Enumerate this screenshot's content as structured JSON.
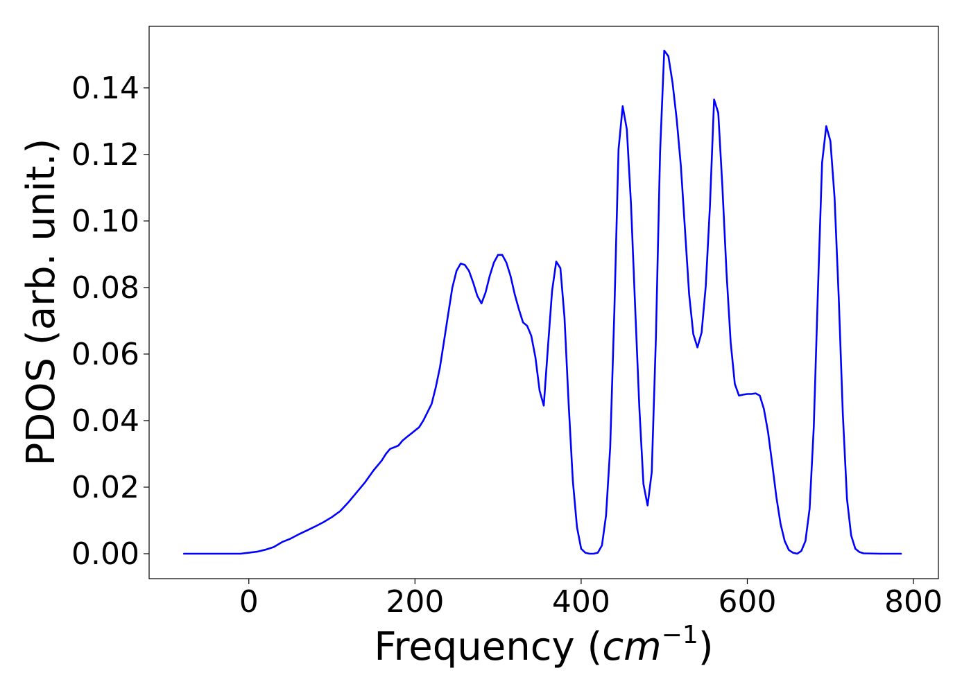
{
  "chart_data": {
    "type": "line",
    "title": "",
    "xlabel": {
      "prefix": "Frequency (",
      "math_base": "cm",
      "math_sup": "−1",
      "suffix": ")"
    },
    "ylabel": "PDOS (arb. unit.)",
    "xlim": [
      -120,
      830
    ],
    "ylim": [
      -0.0075,
      0.1585
    ],
    "xticks": [
      0,
      200,
      400,
      600,
      800
    ],
    "xtick_labels": [
      "0",
      "200",
      "400",
      "600",
      "800"
    ],
    "yticks": [
      0.0,
      0.02,
      0.04,
      0.06,
      0.08,
      0.1,
      0.12,
      0.14
    ],
    "ytick_labels": [
      "0.00",
      "0.02",
      "0.04",
      "0.06",
      "0.08",
      "0.10",
      "0.12",
      "0.14"
    ],
    "grid": false,
    "legend": false,
    "series": [
      {
        "color": "#0000ff",
        "x": [
          -78,
          -40,
          -10,
          0,
          10,
          20,
          30,
          40,
          50,
          60,
          70,
          80,
          90,
          100,
          110,
          120,
          130,
          140,
          150,
          160,
          165,
          170,
          175,
          180,
          185,
          190,
          195,
          200,
          205,
          210,
          215,
          220,
          225,
          230,
          235,
          240,
          245,
          250,
          255,
          260,
          265,
          270,
          275,
          280,
          285,
          290,
          295,
          300,
          305,
          310,
          315,
          320,
          325,
          330,
          335,
          340,
          345,
          350,
          355,
          360,
          365,
          370,
          375,
          380,
          385,
          390,
          395,
          400,
          405,
          410,
          415,
          420,
          425,
          430,
          435,
          440,
          445,
          450,
          455,
          460,
          465,
          470,
          475,
          480,
          485,
          490,
          495,
          500,
          505,
          510,
          515,
          520,
          525,
          530,
          535,
          540,
          545,
          550,
          555,
          560,
          565,
          570,
          575,
          580,
          585,
          590,
          595,
          600,
          605,
          610,
          615,
          620,
          625,
          630,
          635,
          640,
          645,
          650,
          655,
          660,
          665,
          670,
          675,
          680,
          685,
          690,
          695,
          700,
          705,
          710,
          715,
          720,
          725,
          730,
          735,
          740,
          760,
          785
        ],
        "y": [
          0.0,
          0.0,
          0.0,
          0.0003,
          0.0006,
          0.0012,
          0.002,
          0.0035,
          0.0045,
          0.0058,
          0.007,
          0.0082,
          0.0095,
          0.011,
          0.0128,
          0.0155,
          0.0185,
          0.0215,
          0.025,
          0.028,
          0.03,
          0.0315,
          0.032,
          0.0325,
          0.034,
          0.035,
          0.036,
          0.037,
          0.038,
          0.04,
          0.0425,
          0.045,
          0.05,
          0.056,
          0.064,
          0.072,
          0.08,
          0.085,
          0.0872,
          0.0868,
          0.085,
          0.0815,
          0.0775,
          0.0752,
          0.0785,
          0.0835,
          0.0875,
          0.0898,
          0.0898,
          0.0875,
          0.0835,
          0.078,
          0.0735,
          0.0695,
          0.0685,
          0.0655,
          0.059,
          0.049,
          0.0445,
          0.062,
          0.079,
          0.0878,
          0.0858,
          0.071,
          0.045,
          0.022,
          0.008,
          0.0015,
          0.0003,
          0.0,
          0.0,
          0.0003,
          0.0025,
          0.0115,
          0.032,
          0.073,
          0.1215,
          0.1345,
          0.1275,
          0.105,
          0.074,
          0.044,
          0.021,
          0.0145,
          0.0245,
          0.065,
          0.1205,
          0.1512,
          0.1495,
          0.1415,
          0.1305,
          0.1165,
          0.0975,
          0.078,
          0.066,
          0.062,
          0.0665,
          0.0805,
          0.1045,
          0.1365,
          0.1325,
          0.1105,
          0.0845,
          0.0635,
          0.051,
          0.0475,
          0.0478,
          0.048,
          0.048,
          0.0482,
          0.0475,
          0.0435,
          0.0365,
          0.027,
          0.017,
          0.009,
          0.0038,
          0.0011,
          0.0003,
          0.0,
          0.0008,
          0.0038,
          0.0135,
          0.038,
          0.079,
          0.1175,
          0.1285,
          0.124,
          0.107,
          0.077,
          0.042,
          0.0165,
          0.0055,
          0.0015,
          0.0005,
          0.0001,
          0.0,
          0.0
        ]
      }
    ]
  }
}
